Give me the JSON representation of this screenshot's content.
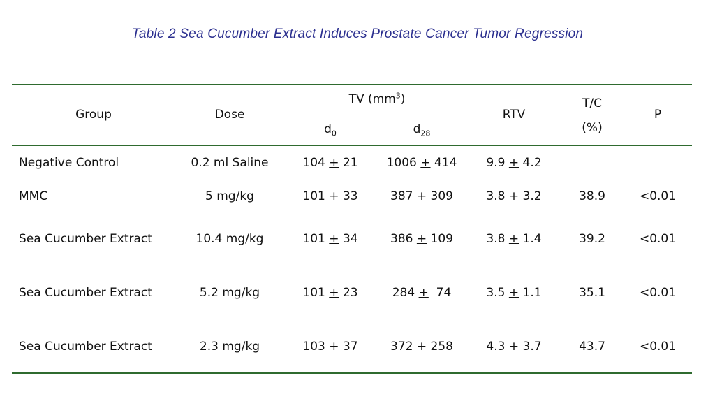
{
  "title": "Table 2  Sea Cucumber Extract Induces Prostate Cancer Tumor Regression",
  "colors": {
    "title": "#2b2f8f",
    "rules": "#2f6b2f"
  },
  "header": {
    "group": "Group",
    "dose": "Dose",
    "tv": "TV (mm",
    "tv_sup": "3",
    "tv_close": ")",
    "d0": "d",
    "d0_sub": "0",
    "d28": "d",
    "d28_sub": "28",
    "rtv": "RTV",
    "tc": "T/C",
    "tc_unit": "(%)",
    "p": "P"
  },
  "pm_symbol": "+",
  "rows": [
    {
      "group": "Negative Control",
      "dose": "0.2 ml Saline",
      "d0_mean": "104",
      "d0_sd": "21",
      "d28_mean": "1006",
      "d28_sd": "414",
      "rtv_mean": "9.9",
      "rtv_sd": "4.2",
      "tc": "",
      "p": ""
    },
    {
      "group": "MMC",
      "dose": "5 mg/kg",
      "d0_mean": "101",
      "d0_sd": "33",
      "d28_mean": "387",
      "d28_sd": "309",
      "rtv_mean": "3.8",
      "rtv_sd": "3.2",
      "tc": "38.9",
      "p": "<0.01"
    },
    {
      "group": "Sea Cucumber Extract",
      "dose": "10.4 mg/kg",
      "d0_mean": "101",
      "d0_sd": "34",
      "d28_mean": "386",
      "d28_sd": "109",
      "rtv_mean": "3.8",
      "rtv_sd": "1.4",
      "tc": "39.2",
      "p": "<0.01"
    },
    {
      "group": "Sea Cucumber Extract",
      "dose": "5.2 mg/kg",
      "d0_mean": "101",
      "d0_sd": "23",
      "d28_mean": "284",
      "d28_sd": " 74",
      "rtv_mean": "3.5",
      "rtv_sd": "1.1",
      "tc": "35.1",
      "p": "<0.01"
    },
    {
      "group": "Sea Cucumber Extract",
      "dose": "2.3 mg/kg",
      "d0_mean": "103",
      "d0_sd": "37",
      "d28_mean": "372",
      "d28_sd": "258",
      "rtv_mean": "4.3",
      "rtv_sd": "3.7",
      "tc": "43.7",
      "p": "<0.01"
    }
  ]
}
